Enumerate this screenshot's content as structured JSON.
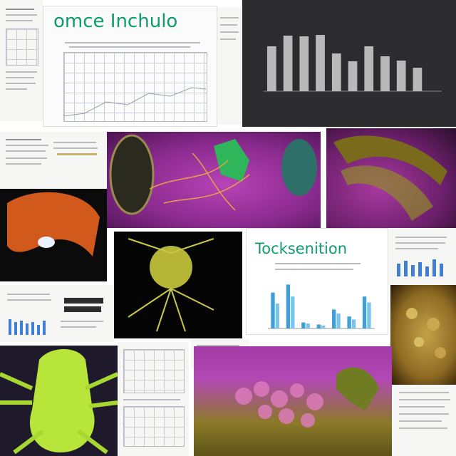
{
  "panels": {
    "top_left_title": "omce Inchulo",
    "middle_right_title": "Tocksenition"
  },
  "colors": {
    "accent_green": "#0e9c6f",
    "dark_panel": "#2c2c2e",
    "bar_gray": "#b9b9b9",
    "bar_blue": "#3f9fd6",
    "magenta_tissue": "#9a2a9c",
    "lime_tissue": "#b7e53a",
    "orange_tissue": "#d2591c"
  },
  "chart_data": [
    {
      "type": "bar",
      "title": "",
      "categories": [
        "",
        "",
        "",
        "",
        "",
        "",
        "",
        "",
        "",
        "",
        ""
      ],
      "values": [
        63,
        78,
        77,
        79,
        53,
        42,
        63,
        49,
        43,
        33,
        0
      ],
      "ylim": [
        0,
        100
      ],
      "grid": false,
      "legend": "none"
    },
    {
      "type": "bar",
      "title": "",
      "categories": [
        "",
        "",
        "",
        "",
        "",
        "",
        ""
      ],
      "series": [
        {
          "values": [
            72,
            88,
            12,
            8,
            38,
            24,
            64
          ]
        },
        {
          "values": [
            50,
            64,
            10,
            6,
            30,
            18,
            52
          ]
        }
      ],
      "ylim": [
        0,
        100
      ],
      "grid": false,
      "legend": "none"
    }
  ]
}
